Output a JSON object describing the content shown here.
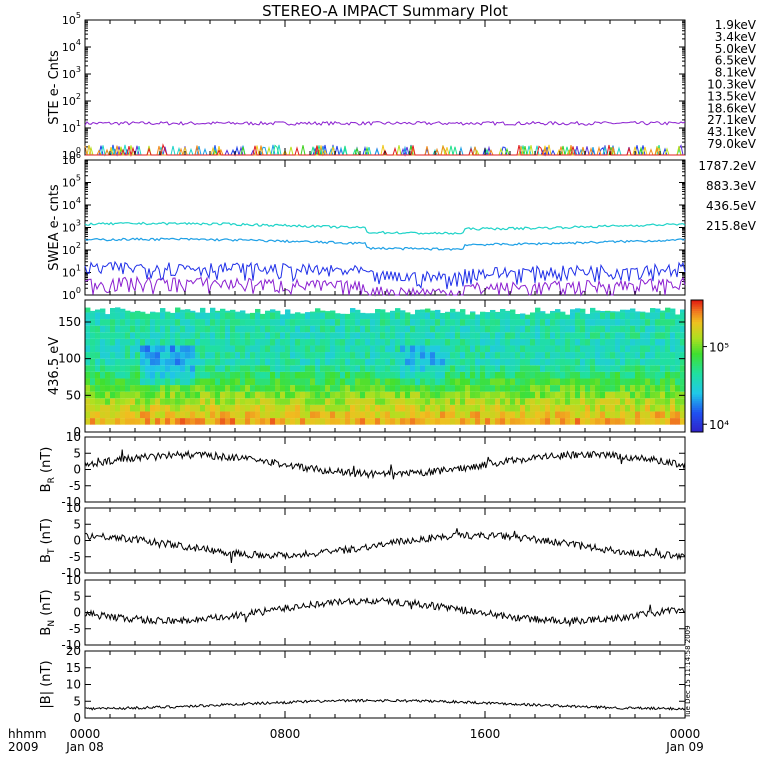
{
  "title": "STEREO-A IMPACT Summary Plot",
  "footer": {
    "time_label": "hhmm",
    "year_label": "2009",
    "stamp": "Tue Dec 15 11:14:58 2009"
  },
  "chart_data": [
    {
      "id": "ste",
      "type": "line",
      "ylabel": "STE e- Cnts",
      "yscale": "log",
      "ylim_exp": [
        0,
        5
      ],
      "series": [
        {
          "name": "1.9keV",
          "color": "#8b1fd0",
          "level": 15
        },
        {
          "name": "3.4keV",
          "color": "#5a2fd8",
          "level": 0.6
        },
        {
          "name": "5.0keV",
          "color": "#1f3fe8",
          "level": 0.6
        },
        {
          "name": "6.5keV",
          "color": "#1ea0e6",
          "level": 0.5
        },
        {
          "name": "8.1keV",
          "color": "#1ed3c8",
          "level": 0.5
        },
        {
          "name": "10.3keV",
          "color": "#1ee08c",
          "level": 0.5
        },
        {
          "name": "13.5keV",
          "color": "#3ed01e",
          "level": 0.5
        },
        {
          "name": "18.6keV",
          "color": "#b8e01e",
          "level": 0.5
        },
        {
          "name": "27.1keV",
          "color": "#f0c81e",
          "level": 0.5
        },
        {
          "name": "43.1keV",
          "color": "#f08c1e",
          "level": 0.5
        },
        {
          "name": "79.0keV",
          "color": "#e01e1e",
          "level": 0.5
        }
      ]
    },
    {
      "id": "swea",
      "type": "line",
      "ylabel": "SWEA e- cnts",
      "yscale": "log",
      "ylim_exp": [
        0,
        6
      ],
      "series": [
        {
          "name": "1787.2eV",
          "color": "#8b1fd0",
          "level": 2.5
        },
        {
          "name": "883.3eV",
          "color": "#1f2fe8",
          "level": 12
        },
        {
          "name": "436.5eV",
          "color": "#1ea0e6",
          "level": 230
        },
        {
          "name": "215.8eV",
          "color": "#1ed3c8",
          "level": 1150
        }
      ]
    },
    {
      "id": "pad",
      "type": "heatmap",
      "ylabel": "436.5 eV",
      "ylim": [
        0,
        180
      ],
      "yticks": [
        0,
        50,
        100,
        150
      ],
      "colorbar_ticks": [
        "10⁵",
        "10⁴"
      ],
      "colorbar_exp_range": [
        3.9,
        5.6
      ]
    },
    {
      "id": "br",
      "type": "line",
      "ylabel": "B",
      "ysub": "R",
      "yunit": "(nT)",
      "ylim": [
        -10,
        10
      ],
      "yticks": [
        -10,
        -5,
        0,
        5,
        10
      ],
      "mean": 1.5
    },
    {
      "id": "bt",
      "type": "line",
      "ylabel": "B",
      "ysub": "T",
      "yunit": "(nT)",
      "ylim": [
        -10,
        10
      ],
      "yticks": [
        -10,
        -5,
        0,
        5,
        10
      ],
      "mean": -1.5
    },
    {
      "id": "bn",
      "type": "line",
      "ylabel": "B",
      "ysub": "N",
      "yunit": "(nT)",
      "ylim": [
        -10,
        10
      ],
      "yticks": [
        -10,
        -5,
        0,
        5,
        10
      ],
      "mean": 0.5
    },
    {
      "id": "bmag",
      "type": "line",
      "ylabel": "|B| (nT)",
      "ylim": [
        0,
        20
      ],
      "yticks": [
        0,
        5,
        10,
        15,
        20
      ],
      "mean": 4
    }
  ],
  "x_axis": {
    "ticks": [
      {
        "hour": 0,
        "time": "0000",
        "date": "Jan 08"
      },
      {
        "hour": 8,
        "time": "0800",
        "date": ""
      },
      {
        "hour": 16,
        "time": "1600",
        "date": ""
      },
      {
        "hour": 24,
        "time": "0000",
        "date": "Jan 09"
      }
    ],
    "range_hours": [
      0,
      24
    ]
  }
}
